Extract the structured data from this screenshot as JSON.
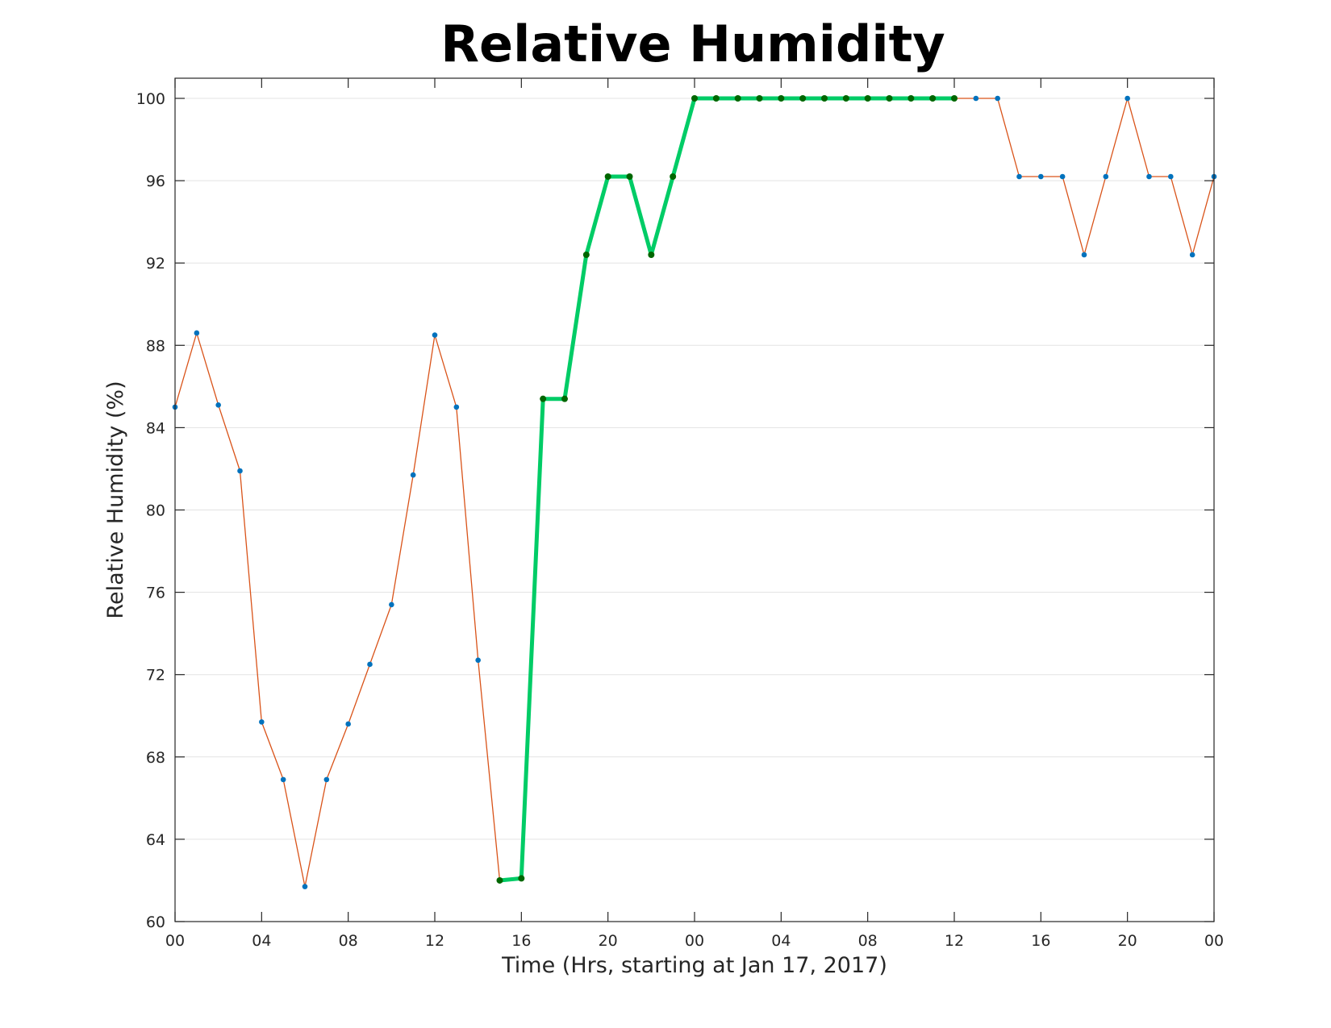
{
  "chart_data": {
    "type": "line",
    "title": "Relative Humidity",
    "xlabel": "Time (Hrs, starting at Jan 17, 2017)",
    "ylabel": "Relative Humidity (%)",
    "xlim": [
      0,
      48
    ],
    "ylim": [
      60,
      101
    ],
    "yticks": [
      60,
      64,
      68,
      72,
      76,
      80,
      84,
      88,
      92,
      96,
      100
    ],
    "xticks": [
      {
        "x": 0,
        "label": "00"
      },
      {
        "x": 4,
        "label": "04"
      },
      {
        "x": 8,
        "label": "08"
      },
      {
        "x": 12,
        "label": "12"
      },
      {
        "x": 16,
        "label": "16"
      },
      {
        "x": 20,
        "label": "20"
      },
      {
        "x": 24,
        "label": "00"
      },
      {
        "x": 28,
        "label": "04"
      },
      {
        "x": 32,
        "label": "08"
      },
      {
        "x": 36,
        "label": "12"
      },
      {
        "x": 40,
        "label": "16"
      },
      {
        "x": 44,
        "label": "20"
      },
      {
        "x": 48,
        "label": "00"
      }
    ],
    "grid": "horizontal",
    "series": [
      {
        "color": "#d95319",
        "marker_color": "#0072bd",
        "x": [
          0,
          1,
          2,
          3,
          4,
          5,
          6,
          7,
          8,
          9,
          10,
          11,
          12,
          13,
          14,
          15,
          16,
          17,
          18,
          19,
          20,
          21,
          22,
          23,
          24,
          25,
          26,
          27,
          28,
          29,
          30,
          31,
          32,
          33,
          34,
          35,
          36,
          37,
          38,
          39,
          40,
          41,
          42,
          43,
          44,
          45,
          46,
          47,
          48
        ],
        "values": [
          85.0,
          88.6,
          85.1,
          81.9,
          69.7,
          66.9,
          61.7,
          66.9,
          69.6,
          72.5,
          75.4,
          81.7,
          88.5,
          85.0,
          72.7,
          62.0,
          62.1,
          85.4,
          85.4,
          92.4,
          96.2,
          96.2,
          92.4,
          96.2,
          100,
          100,
          100,
          100,
          100,
          100,
          100,
          100,
          100,
          100,
          100,
          100,
          100,
          100,
          100,
          96.2,
          96.2,
          96.2,
          92.4,
          96.2,
          100,
          96.2,
          96.2,
          92.4,
          96.2
        ]
      },
      {
        "color": "#00cc66",
        "marker_color": "#006600",
        "x": [
          15,
          16,
          17,
          18,
          19,
          20,
          21,
          22,
          23,
          24,
          25,
          26,
          27,
          28,
          29,
          30,
          31,
          32,
          33,
          34,
          35,
          36
        ],
        "values": [
          62.0,
          62.1,
          85.4,
          85.4,
          92.4,
          96.2,
          96.2,
          92.4,
          96.2,
          100,
          100,
          100,
          100,
          100,
          100,
          100,
          100,
          100,
          100,
          100,
          100,
          100
        ]
      }
    ]
  }
}
